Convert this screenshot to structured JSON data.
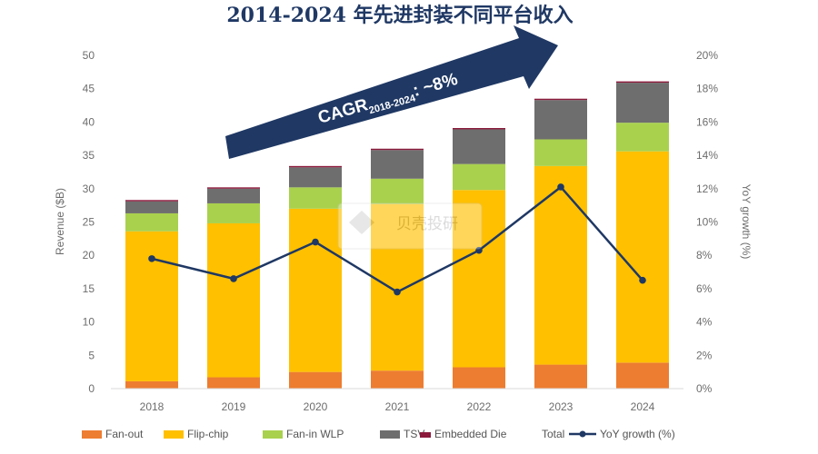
{
  "title": "2014-2024 年先进封装不同平台收入",
  "watermark": "贝壳投研",
  "annotation": {
    "cagr_main": "CAGR",
    "cagr_sub": "2018-2024",
    "cagr_value": ": ~8%"
  },
  "chart_data": {
    "type": "bar",
    "stacked": true,
    "categories": [
      "2018",
      "2019",
      "2020",
      "2021",
      "2022",
      "2023",
      "2024"
    ],
    "series": [
      {
        "name": "Fan-out",
        "color": "#ED7D31",
        "values": [
          1.1,
          1.7,
          2.5,
          2.7,
          3.2,
          3.6,
          3.9
        ]
      },
      {
        "name": "Flip-chip",
        "color": "#FFC000",
        "values": [
          22.5,
          23.1,
          24.5,
          25.0,
          26.6,
          29.8,
          31.7
        ]
      },
      {
        "name": "Fan-in WLP",
        "color": "#A9D14E",
        "values": [
          2.7,
          3.0,
          3.2,
          3.8,
          3.9,
          4.0,
          4.3
        ]
      },
      {
        "name": "TSV",
        "color": "#6E6E6E",
        "values": [
          1.8,
          2.2,
          3.0,
          4.3,
          5.2,
          5.9,
          6.0
        ]
      },
      {
        "name": "Embedded Die",
        "color": "#8B1A3C",
        "values": [
          0.2,
          0.2,
          0.2,
          0.2,
          0.2,
          0.2,
          0.2
        ]
      }
    ],
    "total_label": "Total",
    "line_series": {
      "name": "YoY growth (%)",
      "color": "#1F3864",
      "axis": "right",
      "values": [
        7.8,
        6.6,
        8.8,
        5.8,
        8.3,
        12.1,
        6.5
      ]
    },
    "ylabel": "Revenue ($B)",
    "ylim": [
      0,
      50
    ],
    "yticks": [
      0,
      5,
      10,
      15,
      20,
      25,
      30,
      35,
      40,
      45,
      50
    ],
    "y2label": "YoY growth (%)",
    "y2lim": [
      0,
      20
    ],
    "y2ticks": [
      "0%",
      "2%",
      "4%",
      "6%",
      "8%",
      "10%",
      "12%",
      "14%",
      "16%",
      "18%",
      "20%"
    ],
    "grid": false,
    "legend_position": "bottom"
  }
}
